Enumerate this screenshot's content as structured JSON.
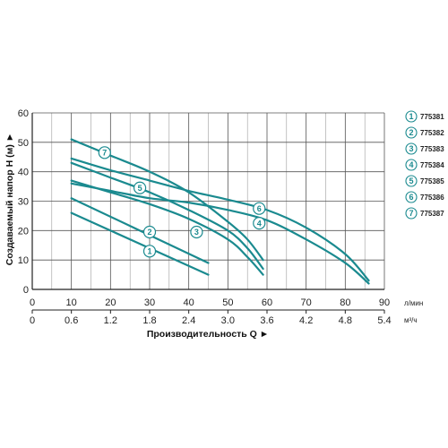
{
  "chart_data": {
    "type": "line",
    "title": "",
    "xlabel": "Производительность Q ►",
    "ylabel": "Создаваемый напор H (м) ►",
    "x_unit_primary": "л/мин",
    "x_unit_secondary": "м³/ч",
    "xlim": [
      0,
      90
    ],
    "ylim": [
      0,
      60
    ],
    "x_ticks": [
      0,
      10,
      20,
      30,
      40,
      50,
      60,
      70,
      80,
      90
    ],
    "x_ticks_secondary": [
      "0",
      "0.6",
      "1.2",
      "1.8",
      "2.4",
      "3.0",
      "3.6",
      "4.2",
      "4.8",
      "5.4"
    ],
    "y_ticks": [
      0,
      10,
      20,
      30,
      40,
      50,
      60
    ],
    "grid": true,
    "legend_position": "right",
    "line_color": "#1a8a8f",
    "series": [
      {
        "name": "775381",
        "marker": "1",
        "marker_at": [
          30,
          13
        ],
        "x": [
          10,
          45
        ],
        "y": [
          26,
          5
        ]
      },
      {
        "name": "775382",
        "marker": "2",
        "marker_at": [
          30,
          19.5
        ],
        "x": [
          10,
          45
        ],
        "y": [
          31,
          9
        ]
      },
      {
        "name": "775383",
        "marker": "3",
        "marker_at": [
          42,
          19.5
        ],
        "x": [
          10,
          20,
          30,
          40,
          50,
          55,
          59
        ],
        "y": [
          37,
          33,
          29,
          24,
          17,
          11,
          5
        ]
      },
      {
        "name": "775384",
        "marker": "4",
        "marker_at": [
          58,
          22.5
        ],
        "x": [
          10,
          20,
          30,
          40,
          50,
          60,
          70,
          80,
          86
        ],
        "y": [
          36,
          33.5,
          31,
          29.5,
          27,
          23.5,
          17,
          9,
          2
        ]
      },
      {
        "name": "775385",
        "marker": "5",
        "marker_at": [
          27.5,
          34.5
        ],
        "x": [
          10,
          20,
          30,
          40,
          50,
          55,
          59
        ],
        "y": [
          43,
          38,
          33,
          27,
          20,
          14,
          7
        ]
      },
      {
        "name": "775386",
        "marker": "6",
        "marker_at": [
          58,
          27.5
        ],
        "x": [
          10,
          20,
          30,
          40,
          50,
          60,
          70,
          80,
          86
        ],
        "y": [
          44.5,
          40.5,
          37,
          33.5,
          30.5,
          27,
          21,
          12,
          3
        ]
      },
      {
        "name": "775387",
        "marker": "7",
        "marker_at": [
          18.5,
          46.5
        ],
        "x": [
          10,
          20,
          30,
          40,
          50,
          55,
          59
        ],
        "y": [
          51,
          45.5,
          40,
          33,
          23,
          17,
          10
        ]
      }
    ]
  }
}
